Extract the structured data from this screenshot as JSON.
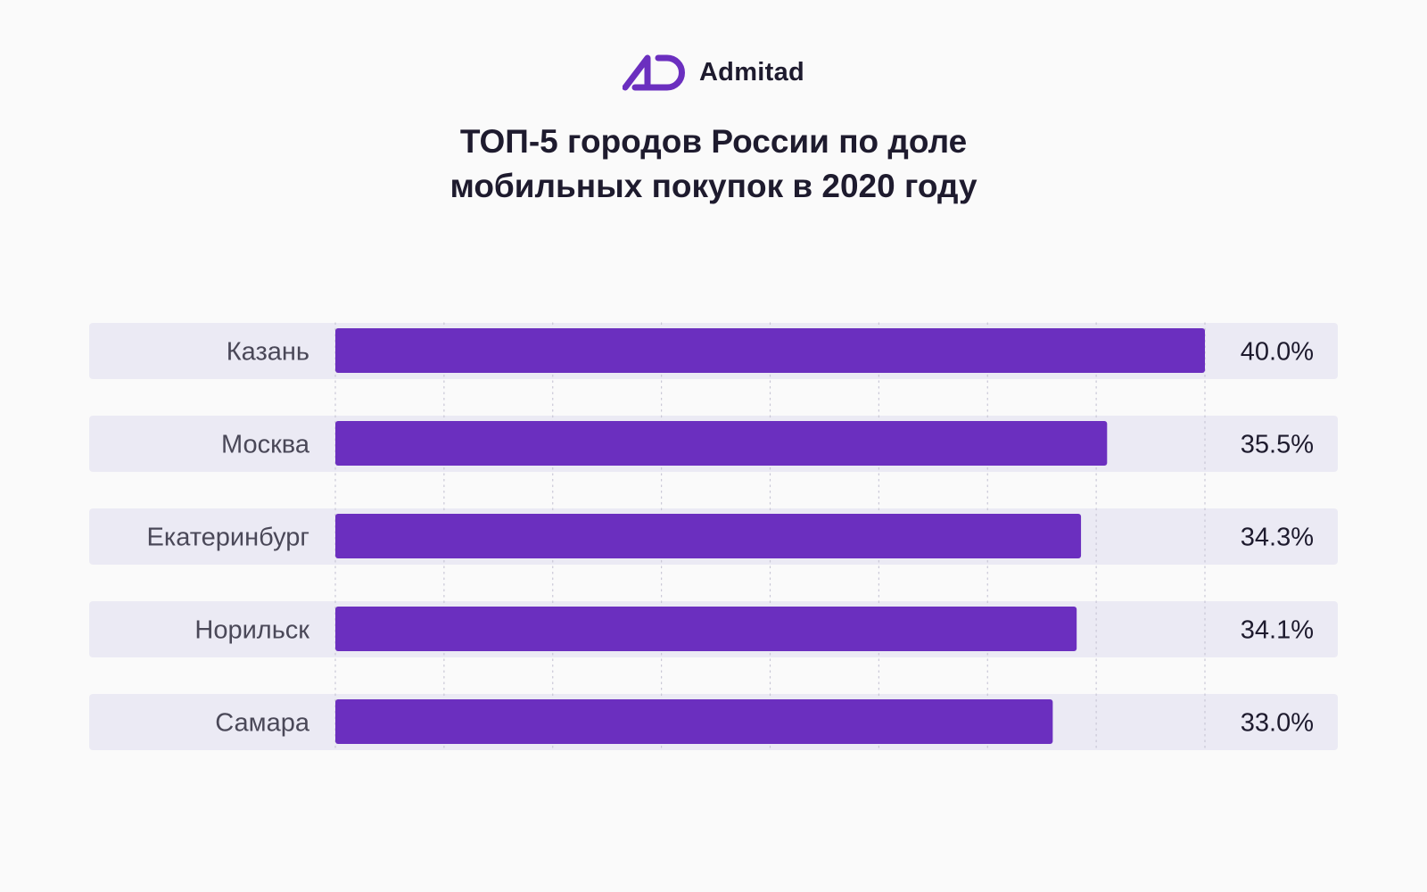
{
  "brand": {
    "name": "Admitad",
    "logo_icon": "admitad-ad-logo-icon",
    "logo_color": "#6b2fbf"
  },
  "title": {
    "line1": "ТОП-5 городов России по доле",
    "line2": "мобильных покупок в 2020 году"
  },
  "chart_data": {
    "type": "bar",
    "orientation": "horizontal",
    "title": "ТОП-5 городов России по доле мобильных покупок в 2020 году",
    "categories": [
      "Казань",
      "Москва",
      "Екатеринбург",
      "Норильск",
      "Самара"
    ],
    "values": [
      40.0,
      35.5,
      34.3,
      34.1,
      33.0
    ],
    "value_labels": [
      "40.0%",
      "35.5%",
      "34.3%",
      "34.1%",
      "33.0%"
    ],
    "unit": "%",
    "xlim": [
      0,
      40
    ],
    "grid": true,
    "legend": "none",
    "colors": {
      "bar": "#6b2fbf",
      "row_background": "#ebeaf4",
      "grid": "#c9c7d6",
      "label": "#4a4858",
      "value": "#1e1b2e"
    }
  }
}
